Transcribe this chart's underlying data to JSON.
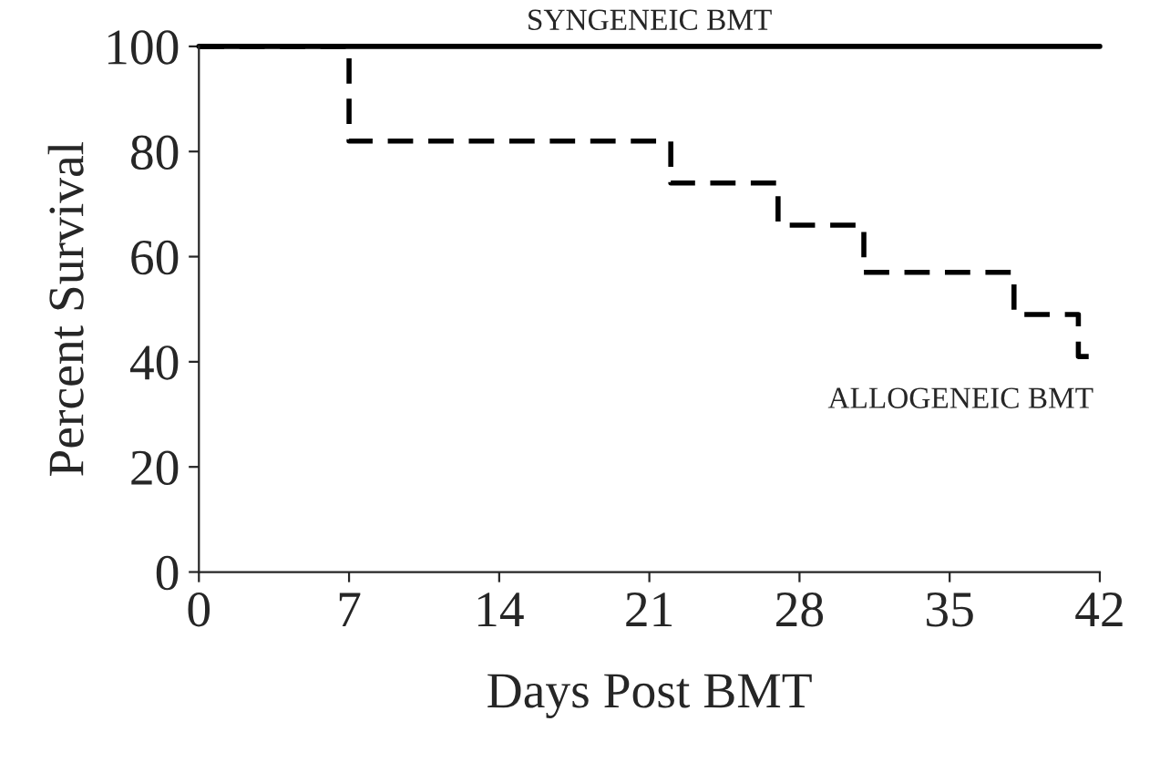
{
  "chart_data": {
    "type": "step",
    "xlabel": "Days Post BMT",
    "ylabel": "Percent Survival",
    "series": [
      {
        "color": "#000000",
        "line_style": "solid",
        "x": [
          0,
          42
        ],
        "values": [
          100,
          100
        ]
      },
      {
        "color": "#000000",
        "line_style": "dashed",
        "x": [
          0,
          7,
          22,
          27,
          31,
          38,
          41,
          41.5
        ],
        "values": [
          100,
          82,
          74,
          66,
          57,
          49,
          41,
          41
        ]
      }
    ],
    "annotations": [
      {
        "text": "SYNGENEIC BMT",
        "x": 21,
        "y": 100
      },
      {
        "text": "ALLOGENEIC BMT",
        "x": 41,
        "y": 41
      }
    ],
    "xlim": [
      0,
      42
    ],
    "xticks": [
      0,
      7,
      14,
      21,
      28,
      35,
      42
    ],
    "ylim": [
      0,
      100
    ],
    "yticks": [
      0,
      20,
      40,
      60,
      80,
      100
    ],
    "grid": false,
    "legend": false
  }
}
